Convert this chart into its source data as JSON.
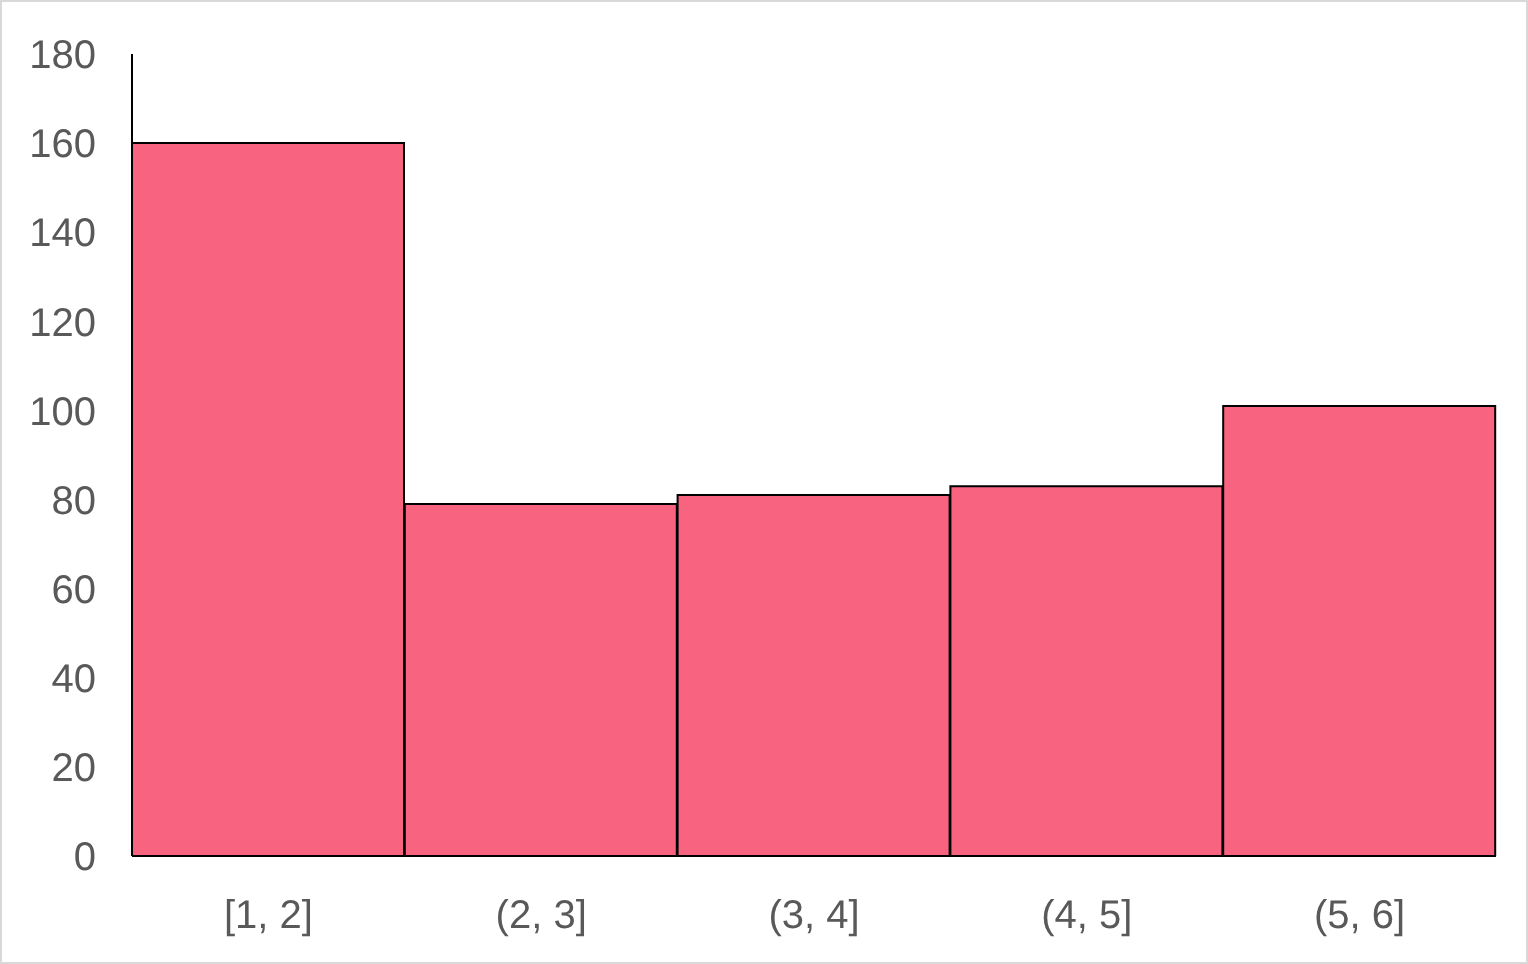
{
  "chart_data": {
    "type": "bar",
    "categories": [
      "[1, 2]",
      "(2, 3]",
      "(3, 4]",
      "(4, 5]",
      "(5, 6]"
    ],
    "values": [
      160,
      79,
      81,
      83,
      101
    ],
    "color": "#f86480",
    "ylim": [
      0,
      180
    ],
    "yticks": [
      0,
      20,
      40,
      60,
      80,
      100,
      120,
      140,
      160,
      180
    ]
  }
}
